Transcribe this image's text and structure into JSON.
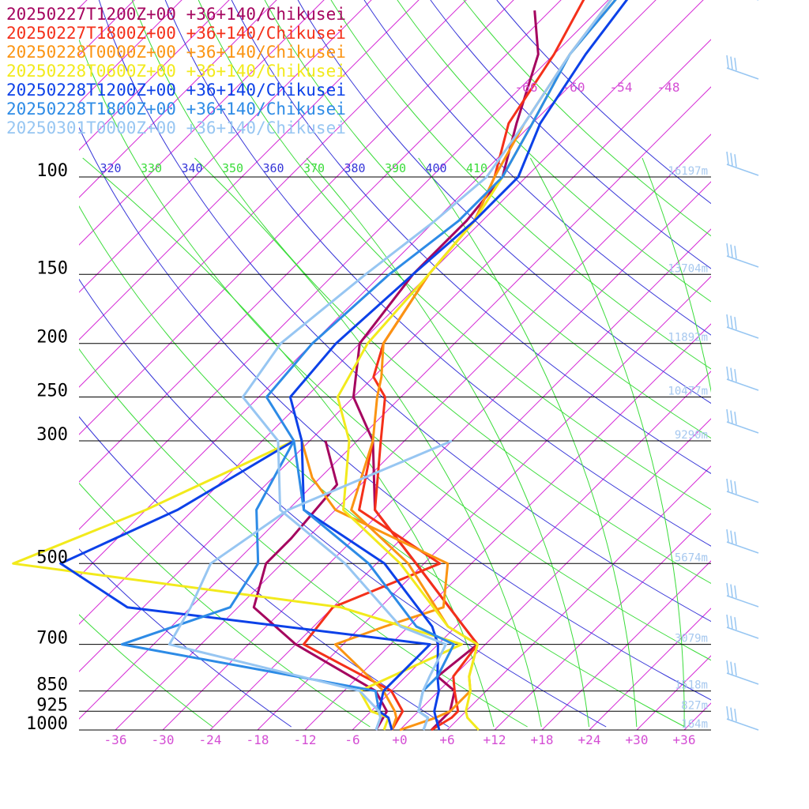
{
  "chart_data": {
    "type": "line",
    "chart_kind": "skew-T log-P sounding",
    "legend": [
      {
        "label": "20250227T1200Z+00 +36+140/Chikusei",
        "color": "#a5055f"
      },
      {
        "label": "20250227T1800Z+00 +36+140/Chikusei",
        "color": "#f4301a"
      },
      {
        "label": "20250228T0000Z+00 +36+140/Chikusei",
        "color": "#fb9412"
      },
      {
        "label": "20250228T0600Z+00 +36+140/Chikusei",
        "color": "#f2ea1c"
      },
      {
        "label": "20250228T1200Z+00 +36+140/Chikusei",
        "color": "#0c41e8"
      },
      {
        "label": "20250228T1800Z+00 +36+140/Chikusei",
        "color": "#2d8be6"
      },
      {
        "label": "20250301T0000Z+00 +36+140/Chikusei",
        "color": "#97c6f2"
      }
    ],
    "pressure_levels": [
      {
        "p": 100,
        "label": "100",
        "height": "16197m"
      },
      {
        "p": 150,
        "label": "150",
        "height": "13704m"
      },
      {
        "p": 200,
        "label": "200",
        "height": "11892m"
      },
      {
        "p": 250,
        "label": "250",
        "height": "10477m"
      },
      {
        "p": 300,
        "label": "300",
        "height": "9290m"
      },
      {
        "p": 500,
        "label": "500",
        "height": "5674m"
      },
      {
        "p": 700,
        "label": "700",
        "height": "3079m"
      },
      {
        "p": 850,
        "label": "850",
        "height": "1518m"
      },
      {
        "p": 925,
        "label": "925",
        "height": "827m"
      },
      {
        "p": 1000,
        "label": "1000",
        "height": "164m"
      }
    ],
    "temperature_ticks": [
      "-36",
      "-30",
      "-24",
      "-18",
      "-12",
      "-6",
      "+0",
      "+6",
      "+12",
      "+18",
      "+24",
      "+30",
      "+36"
    ],
    "theta_labels": [
      "320",
      "330",
      "340",
      "350",
      "360",
      "370",
      "380",
      "390",
      "400",
      "410"
    ],
    "upper_temp_labels": [
      "-66",
      "-60",
      "-54",
      "-48"
    ],
    "series": [
      {
        "name": "20250227T1200Z+00 +36+140/Chikusei",
        "color": "#a5055f",
        "temperature": [
          [
            -74,
            50
          ],
          [
            -68,
            60
          ],
          [
            -62,
            80
          ],
          [
            -57,
            100
          ],
          [
            -56,
            120
          ],
          [
            -56,
            150
          ],
          [
            -54,
            200
          ],
          [
            -48,
            250
          ],
          [
            -40,
            300
          ],
          [
            -31,
            400
          ],
          [
            -19,
            500
          ],
          [
            -5,
            650
          ],
          [
            -1,
            700
          ],
          [
            -2,
            800
          ],
          [
            2,
            850
          ],
          [
            4,
            925
          ],
          [
            4,
            950
          ],
          [
            4,
            1000
          ]
        ],
        "dewpoint": [
          [
            -46,
            300
          ],
          [
            -39,
            360
          ],
          [
            -38,
            450
          ],
          [
            -38,
            500
          ],
          [
            -34,
            600
          ],
          [
            -24,
            700
          ],
          [
            -8,
            850
          ],
          [
            -4,
            925
          ],
          [
            -3,
            1000
          ]
        ]
      },
      {
        "name": "20250227T1800Z+00 +36+140/Chikusei",
        "color": "#f4301a",
        "temperature": [
          [
            -70,
            45
          ],
          [
            -66,
            60
          ],
          [
            -63,
            80
          ],
          [
            -58,
            100
          ],
          [
            -55,
            120
          ],
          [
            -54,
            150
          ],
          [
            -51,
            200
          ],
          [
            -48,
            230
          ],
          [
            -44,
            250
          ],
          [
            -39,
            300
          ],
          [
            -31,
            400
          ],
          [
            -19,
            500
          ],
          [
            -5,
            650
          ],
          [
            -1,
            700
          ],
          [
            0,
            800
          ],
          [
            2,
            850
          ],
          [
            5,
            925
          ],
          [
            5,
            950
          ],
          [
            4,
            1000
          ]
        ],
        "dewpoint": [
          [
            -40,
            300
          ],
          [
            -33,
            400
          ],
          [
            -16,
            500
          ],
          [
            -24,
            600
          ],
          [
            -23,
            700
          ],
          [
            -6,
            850
          ],
          [
            -2,
            925
          ],
          [
            -1,
            1000
          ]
        ]
      },
      {
        "name": "20250228T0000Z+00 +36+140/Chikusei",
        "color": "#fb9412",
        "temperature": [
          [
            -67,
            40
          ],
          [
            -64,
            60
          ],
          [
            -61,
            80
          ],
          [
            -58,
            100
          ],
          [
            -55,
            120
          ],
          [
            -54,
            150
          ],
          [
            -51,
            200
          ],
          [
            -47,
            230
          ],
          [
            -45,
            250
          ],
          [
            -40,
            300
          ],
          [
            -34,
            400
          ],
          [
            -20,
            500
          ],
          [
            -7,
            650
          ],
          [
            -1,
            700
          ],
          [
            2,
            800
          ],
          [
            4,
            850
          ],
          [
            4,
            925
          ],
          [
            3,
            950
          ],
          [
            0,
            1000
          ]
        ],
        "dewpoint": [
          [
            -49,
            300
          ],
          [
            -43,
            350
          ],
          [
            -36,
            400
          ],
          [
            -15,
            500
          ],
          [
            -10,
            600
          ],
          [
            -15,
            650
          ],
          [
            -19,
            700
          ],
          [
            -7,
            850
          ],
          [
            -3,
            925
          ],
          [
            -2,
            950
          ],
          [
            -1,
            1000
          ]
        ]
      },
      {
        "name": "20250228T0600Z+00 +36+140/Chikusei",
        "color": "#f2ea1c",
        "temperature": [
          [
            -66,
            40
          ],
          [
            -64,
            60
          ],
          [
            -60,
            80
          ],
          [
            -57,
            100
          ],
          [
            -55,
            120
          ],
          [
            -54,
            150
          ],
          [
            -53,
            200
          ],
          [
            -50,
            250
          ],
          [
            -43,
            300
          ],
          [
            -35,
            400
          ],
          [
            -21,
            500
          ],
          [
            -7,
            650
          ],
          [
            -1,
            700
          ],
          [
            2,
            800
          ],
          [
            4,
            850
          ],
          [
            6,
            925
          ],
          [
            7,
            950
          ],
          [
            10,
            1000
          ]
        ],
        "dewpoint": [
          [
            -50,
            300
          ],
          [
            -60,
            400
          ],
          [
            -70,
            500
          ],
          [
            -23,
            600
          ],
          [
            -3,
            700
          ],
          [
            -10,
            850
          ],
          [
            -6,
            925
          ],
          [
            -3,
            950
          ],
          [
            -2,
            1000
          ]
        ]
      },
      {
        "name": "20250228T1200Z+00 +36+140/Chikusei",
        "color": "#0c41e8",
        "temperature": [
          [
            -65,
            40
          ],
          [
            -62,
            60
          ],
          [
            -59,
            80
          ],
          [
            -55,
            100
          ],
          [
            -55,
            120
          ],
          [
            -56,
            150
          ],
          [
            -57,
            200
          ],
          [
            -56,
            250
          ],
          [
            -49,
            300
          ],
          [
            -40,
            400
          ],
          [
            -23,
            500
          ],
          [
            -9,
            650
          ],
          [
            -6,
            700
          ],
          [
            -2,
            800
          ],
          [
            0,
            850
          ],
          [
            2,
            925
          ],
          [
            3,
            950
          ],
          [
            5,
            1000
          ]
        ],
        "dewpoint": [
          [
            -50,
            300
          ],
          [
            -56,
            400
          ],
          [
            -64,
            500
          ],
          [
            -50,
            600
          ],
          [
            -7,
            700
          ],
          [
            -7,
            850
          ],
          [
            -5,
            925
          ],
          [
            -3,
            950
          ],
          [
            -1,
            1000
          ]
        ]
      },
      {
        "name": "20250228T1800Z+00 +36+140/Chikusei",
        "color": "#2d8be6",
        "temperature": [
          [
            -66,
            40
          ],
          [
            -64,
            60
          ],
          [
            -60,
            80
          ],
          [
            -57,
            100
          ],
          [
            -57,
            120
          ],
          [
            -59,
            150
          ],
          [
            -60,
            200
          ],
          [
            -59,
            250
          ],
          [
            -50,
            300
          ],
          [
            -40,
            400
          ],
          [
            -25,
            500
          ],
          [
            -11,
            650
          ],
          [
            -4,
            700
          ],
          [
            -2,
            800
          ],
          [
            -2,
            850
          ],
          [
            0,
            925
          ],
          [
            2,
            950
          ],
          [
            3,
            1000
          ]
        ],
        "dewpoint": [
          [
            -50,
            300
          ],
          [
            -46,
            400
          ],
          [
            -39,
            500
          ],
          [
            -37,
            600
          ],
          [
            -46,
            700
          ],
          [
            -8,
            850
          ],
          [
            -5,
            925
          ],
          [
            -4,
            950
          ],
          [
            -3,
            1000
          ]
        ]
      },
      {
        "name": "20250301T0000Z+00 +36+140/Chikusei",
        "color": "#97c6f2",
        "temperature": [
          [
            -67,
            40
          ],
          [
            -64,
            60
          ],
          [
            -61,
            80
          ],
          [
            -59,
            100
          ],
          [
            -60,
            120
          ],
          [
            -62,
            150
          ],
          [
            -64,
            200
          ],
          [
            -62,
            250
          ],
          [
            -52,
            300
          ],
          [
            -43,
            400
          ],
          [
            -28,
            500
          ],
          [
            -13,
            650
          ],
          [
            -5,
            700
          ],
          [
            -3,
            800
          ],
          [
            -2,
            850
          ],
          [
            0,
            925
          ],
          [
            2,
            950
          ],
          [
            3,
            1000
          ]
        ],
        "dewpoint": [
          [
            -30,
            300
          ],
          [
            -42,
            400
          ],
          [
            -45,
            500
          ],
          [
            -42,
            600
          ],
          [
            -40,
            700
          ],
          [
            -10,
            850
          ],
          [
            -5,
            925
          ],
          [
            -4,
            950
          ],
          [
            -3,
            1000
          ]
        ]
      }
    ]
  }
}
